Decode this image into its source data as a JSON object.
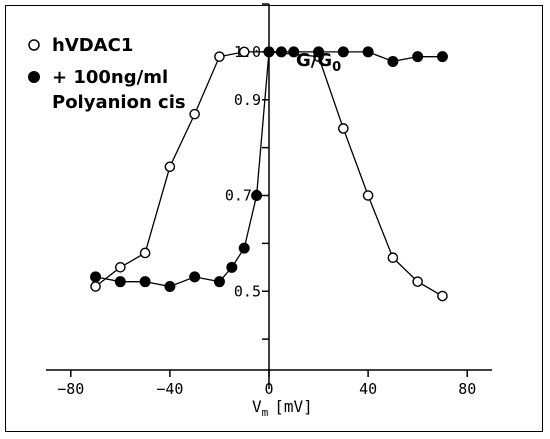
{
  "chart_data": {
    "type": "line",
    "xlabel_main": "V",
    "xlabel_sub": "m",
    "xlabel_unit": "[mV]",
    "ylabel_main": "G/G",
    "ylabel_sub": "0",
    "xlim": [
      -90,
      90
    ],
    "ylim": [
      0.3,
      1.1
    ],
    "x_ticks": [
      -80,
      -40,
      0,
      40,
      80
    ],
    "x_tick_labels": [
      "−80",
      "−40",
      "0",
      "40",
      "80"
    ],
    "y_ticks": [
      0.4,
      0.5,
      0.6,
      0.7,
      0.8,
      0.9,
      1.0,
      1.1
    ],
    "y_tick_labels": [
      {
        "value": 1.0,
        "label": "1.0"
      },
      {
        "value": 0.9,
        "label": "0.9"
      },
      {
        "value": 0.7,
        "label": "0.70"
      },
      {
        "value": 0.5,
        "label": "0.5"
      }
    ],
    "series": [
      {
        "name": "hVDAC1",
        "marker": "open-circle",
        "points": [
          [
            -70,
            0.51
          ],
          [
            -60,
            0.55
          ],
          [
            -50,
            0.58
          ],
          [
            -40,
            0.76
          ],
          [
            -30,
            0.87
          ],
          [
            -20,
            0.99
          ],
          [
            -10,
            1.0
          ],
          [
            0,
            1.0
          ],
          [
            20,
            0.99
          ],
          [
            30,
            0.84
          ],
          [
            40,
            0.7
          ],
          [
            50,
            0.57
          ],
          [
            60,
            0.52
          ],
          [
            70,
            0.49
          ]
        ]
      },
      {
        "name": "+ 100ng/ml",
        "name_line2": "Polyanion cis",
        "marker": "filled-circle",
        "points": [
          [
            -70,
            0.53
          ],
          [
            -60,
            0.52
          ],
          [
            -50,
            0.52
          ],
          [
            -40,
            0.51
          ],
          [
            -30,
            0.53
          ],
          [
            -20,
            0.52
          ],
          [
            -15,
            0.55
          ],
          [
            -10,
            0.59
          ],
          [
            -5,
            0.7
          ],
          [
            0,
            1.0
          ],
          [
            5,
            1.0
          ],
          [
            10,
            1.0
          ],
          [
            20,
            1.0
          ],
          [
            30,
            1.0
          ],
          [
            40,
            1.0
          ],
          [
            50,
            0.98
          ],
          [
            60,
            0.99
          ],
          [
            70,
            0.99
          ]
        ]
      }
    ],
    "legend_position": "top-left",
    "grid": false
  }
}
